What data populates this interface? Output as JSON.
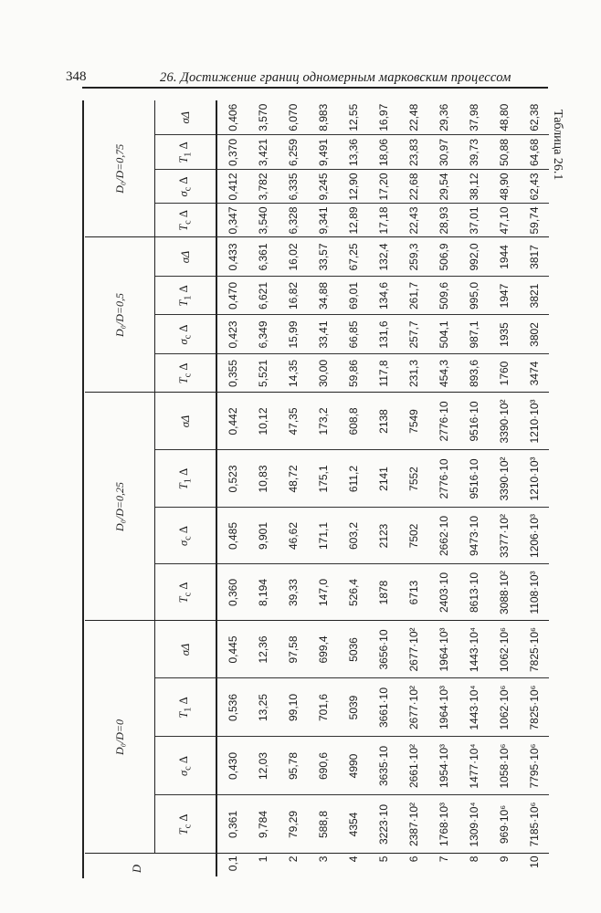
{
  "page": {
    "number": "348",
    "running_title": "26. Достижение границ одномерным марковским процессом",
    "table_caption": "Таблица 26.1"
  },
  "table": {
    "row_header": "D",
    "groups": [
      "D₀/D=0",
      "D₀/D=0,25",
      "D₀/D=0,5",
      "D₀/D=0,75"
    ],
    "subcolumns": [
      {
        "main": "T",
        "sub": "c",
        "suffix": " Δ"
      },
      {
        "main": "σ",
        "sub": "c",
        "suffix": " Δ"
      },
      {
        "main": "T",
        "sub": "1",
        "suffix": " Δ"
      },
      {
        "main": "σΔ",
        "sub": "",
        "suffix": ""
      }
    ],
    "rows": [
      {
        "D": "0,1",
        "values": [
          "0,361",
          "0,430",
          "0,536",
          "0,445",
          "0,360",
          "0,485",
          "0,523",
          "0,442",
          "0,355",
          "0,423",
          "0,470",
          "0,433",
          "0,347",
          "0,412",
          "0,370",
          "0,406"
        ]
      },
      {
        "D": "1",
        "values": [
          "9,784",
          "12,03",
          "13,25",
          "12,36",
          "8,194",
          "9,901",
          "10,83",
          "10,12",
          "5,521",
          "6,349",
          "6,621",
          "6,361",
          "3,540",
          "3,782",
          "3,421",
          "3,570"
        ]
      },
      {
        "D": "2",
        "values": [
          "79,29",
          "95,78",
          "99,10",
          "97,58",
          "39,33",
          "46,62",
          "48,72",
          "47,35",
          "14,35",
          "15,99",
          "16,82",
          "16,02",
          "6,328",
          "6,335",
          "6,259",
          "6,070"
        ]
      },
      {
        "D": "3",
        "values": [
          "588,8",
          "690,6",
          "701,6",
          "699,4",
          "147,0",
          "171,1",
          "175,1",
          "173,2",
          "30,00",
          "33,41",
          "34,88",
          "33,57",
          "9,341",
          "9,245",
          "9,491",
          "8,983"
        ]
      },
      {
        "D": "4",
        "values": [
          "4354",
          "4990",
          "5039",
          "5036",
          "526,4",
          "603,2",
          "611,2",
          "608,8",
          "59,86",
          "66,85",
          "69,01",
          "67,25",
          "12,89",
          "12,90",
          "13,36",
          "12,55"
        ]
      },
      {
        "D": "5",
        "values": [
          "3223·10",
          "3635·10",
          "3661·10",
          "3656·10",
          "1878",
          "2123",
          "2141",
          "2138",
          "117,8",
          "131,6",
          "134,6",
          "132,4",
          "17,18",
          "17,20",
          "18,06",
          "16,97"
        ]
      },
      {
        "D": "6",
        "values": [
          "2387·10²",
          "2661·10²",
          "2677·10²",
          "2677·10²",
          "6713",
          "7502",
          "7552",
          "7549",
          "231,3",
          "257,7",
          "261,7",
          "259,3",
          "22,43",
          "22,68",
          "23,83",
          "22,48"
        ]
      },
      {
        "D": "7",
        "values": [
          "1768·10³",
          "1954·10³",
          "1964·10³",
          "1964·10³",
          "2403·10",
          "2662·10",
          "2776·10",
          "2776·10",
          "454,3",
          "504,1",
          "509,6",
          "506,9",
          "28,93",
          "29,54",
          "30,97",
          "29,36"
        ]
      },
      {
        "D": "8",
        "values": [
          "1309·10⁴",
          "1477·10⁴",
          "1443·10⁴",
          "1443·10⁴",
          "8613·10",
          "9473·10",
          "9516·10",
          "9516·10",
          "893,6",
          "987,1",
          "995,0",
          "992,0",
          "37,01",
          "38,12",
          "39,73",
          "37,98"
        ]
      },
      {
        "D": "9",
        "values": [
          "969·10⁶",
          "1058·10⁶",
          "1062·10⁶",
          "1062·10⁶",
          "3088·10²",
          "3377·10²",
          "3390·10²",
          "3390·10²",
          "1760",
          "1935",
          "1947",
          "1944",
          "47,10",
          "48,90",
          "50,88",
          "48,80"
        ]
      },
      {
        "D": "10",
        "values": [
          "7185·10⁶",
          "7795·10⁶",
          "7825·10⁶",
          "7825·10⁶",
          "1108·10³",
          "1206·10³",
          "1210·10³",
          "1210·10³",
          "3474",
          "3802",
          "3821",
          "3817",
          "59,74",
          "62,43",
          "64,68",
          "62,38"
        ]
      }
    ]
  }
}
